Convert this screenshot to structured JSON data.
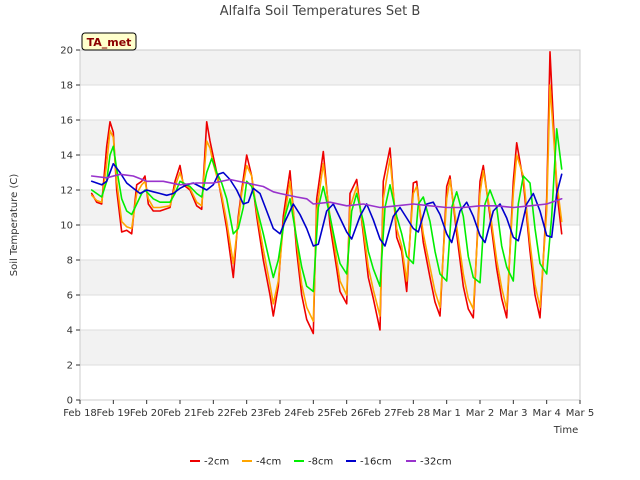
{
  "chart_data": {
    "type": "line",
    "title": "Alfalfa Soil Temperatures Set B",
    "xlabel": "Time",
    "ylabel": "Soil Temperature (C)",
    "ylim": [
      0,
      20
    ],
    "xlim": [
      0,
      15
    ],
    "yticks": [
      0,
      2,
      4,
      6,
      8,
      10,
      12,
      14,
      16,
      18,
      20
    ],
    "xticks": [
      {
        "x": 0,
        "label": "Feb 18"
      },
      {
        "x": 1,
        "label": "Feb 19"
      },
      {
        "x": 2,
        "label": "Feb 20"
      },
      {
        "x": 3,
        "label": "Feb 21"
      },
      {
        "x": 4,
        "label": "Feb 22"
      },
      {
        "x": 5,
        "label": "Feb 23"
      },
      {
        "x": 6,
        "label": "Feb 24"
      },
      {
        "x": 7,
        "label": "Feb 25"
      },
      {
        "x": 8,
        "label": "Feb 26"
      },
      {
        "x": 9,
        "label": "Feb 27"
      },
      {
        "x": 10,
        "label": "Feb 28"
      },
      {
        "x": 11,
        "label": "Mar 1"
      },
      {
        "x": 12,
        "label": "Mar 2"
      },
      {
        "x": 13,
        "label": "Mar 3"
      },
      {
        "x": 14,
        "label": "Mar 4"
      },
      {
        "x": 15,
        "label": "Mar 5"
      }
    ],
    "grid": "horizontal bands",
    "legend": "bottom",
    "site_label": "TA_met",
    "series": [
      {
        "name": "-2cm",
        "color": "#ee0000",
        "x": [
          0.35,
          0.5,
          0.65,
          0.8,
          0.9,
          1.0,
          1.1,
          1.25,
          1.4,
          1.55,
          1.7,
          1.85,
          1.95,
          2.05,
          2.2,
          2.4,
          2.7,
          2.85,
          3.0,
          3.1,
          3.3,
          3.5,
          3.65,
          3.8,
          3.9,
          4.0,
          4.1,
          4.25,
          4.4,
          4.6,
          4.75,
          4.85,
          5.0,
          5.15,
          5.3,
          5.5,
          5.7,
          5.8,
          5.95,
          6.1,
          6.3,
          6.5,
          6.65,
          6.8,
          7.0,
          7.1,
          7.3,
          7.5,
          7.7,
          7.8,
          8.0,
          8.1,
          8.3,
          8.5,
          8.65,
          8.8,
          9.0,
          9.1,
          9.3,
          9.5,
          9.65,
          9.8,
          10.0,
          10.1,
          10.3,
          10.5,
          10.65,
          10.8,
          11.0,
          11.1,
          11.3,
          11.5,
          11.65,
          11.8,
          12.0,
          12.1,
          12.3,
          12.5,
          12.65,
          12.8,
          13.0,
          13.1,
          13.3,
          13.5,
          13.65,
          13.8,
          14.0,
          14.1,
          14.3,
          14.45
        ],
        "y": [
          11.8,
          11.3,
          11.2,
          14.5,
          15.9,
          15.3,
          12.0,
          9.6,
          9.7,
          9.5,
          12.3,
          12.5,
          12.8,
          11.2,
          10.8,
          10.8,
          11.0,
          12.5,
          13.4,
          12.3,
          12.0,
          11.1,
          10.9,
          15.9,
          14.8,
          13.9,
          13.0,
          11.5,
          9.8,
          7.0,
          10.5,
          12.0,
          14.0,
          12.8,
          10.5,
          8.0,
          6.0,
          4.8,
          6.5,
          10.5,
          13.1,
          8.5,
          6.0,
          4.6,
          3.8,
          11.5,
          14.2,
          10.0,
          7.5,
          6.2,
          5.5,
          11.8,
          12.6,
          9.5,
          7.0,
          5.8,
          4.0,
          12.5,
          14.4,
          9.3,
          8.5,
          6.2,
          12.4,
          12.5,
          9.0,
          7.0,
          5.6,
          4.8,
          12.2,
          12.8,
          9.5,
          6.5,
          5.2,
          4.7,
          12.5,
          13.4,
          10.5,
          7.5,
          5.8,
          4.7,
          12.5,
          14.7,
          12.5,
          8.5,
          6.0,
          4.7,
          11.5,
          19.9,
          12.0,
          9.5
        ]
      },
      {
        "name": "-4cm",
        "color": "#ffa500",
        "x": [
          0.35,
          0.5,
          0.65,
          0.8,
          0.9,
          1.0,
          1.1,
          1.25,
          1.4,
          1.55,
          1.7,
          1.85,
          1.95,
          2.05,
          2.2,
          2.4,
          2.7,
          2.85,
          3.0,
          3.1,
          3.3,
          3.5,
          3.65,
          3.8,
          3.9,
          4.0,
          4.1,
          4.25,
          4.4,
          4.6,
          4.75,
          4.85,
          5.0,
          5.15,
          5.3,
          5.5,
          5.7,
          5.8,
          5.95,
          6.1,
          6.3,
          6.5,
          6.65,
          6.8,
          7.0,
          7.1,
          7.3,
          7.5,
          7.7,
          7.8,
          8.0,
          8.1,
          8.3,
          8.5,
          8.65,
          8.8,
          9.0,
          9.1,
          9.3,
          9.5,
          9.65,
          9.8,
          10.0,
          10.1,
          10.3,
          10.5,
          10.65,
          10.8,
          11.0,
          11.1,
          11.3,
          11.5,
          11.65,
          11.8,
          12.0,
          12.1,
          12.3,
          12.5,
          12.65,
          12.8,
          13.0,
          13.1,
          13.3,
          13.5,
          13.65,
          13.8,
          14.0,
          14.1,
          14.3,
          14.45
        ],
        "y": [
          11.7,
          11.4,
          11.3,
          13.5,
          15.4,
          15.0,
          12.5,
          10.2,
          9.9,
          9.8,
          11.8,
          12.3,
          12.5,
          11.5,
          11.0,
          11.0,
          11.1,
          12.2,
          13.0,
          12.4,
          12.1,
          11.3,
          11.1,
          14.8,
          14.4,
          13.5,
          12.8,
          11.7,
          10.2,
          7.8,
          10.2,
          11.8,
          13.4,
          12.8,
          10.8,
          8.6,
          6.6,
          5.5,
          6.8,
          10.0,
          12.5,
          9.0,
          6.6,
          5.3,
          4.5,
          10.8,
          13.5,
          10.5,
          8.0,
          6.8,
          6.0,
          11.0,
          12.2,
          9.8,
          7.6,
          6.3,
          4.8,
          11.5,
          13.8,
          9.8,
          8.8,
          6.8,
          11.8,
          12.2,
          9.5,
          7.6,
          6.2,
          5.3,
          11.5,
          12.6,
          9.9,
          7.2,
          5.8,
          5.2,
          11.8,
          13.1,
          10.8,
          8.0,
          6.4,
          5.2,
          11.8,
          14.0,
          12.8,
          9.0,
          6.6,
          5.3,
          10.8,
          18.0,
          12.5,
          10.2
        ]
      },
      {
        "name": "-8cm",
        "color": "#00ee00",
        "x": [
          0.35,
          0.5,
          0.65,
          0.8,
          0.9,
          1.0,
          1.1,
          1.25,
          1.4,
          1.55,
          1.7,
          1.85,
          1.95,
          2.05,
          2.2,
          2.4,
          2.7,
          2.85,
          3.0,
          3.1,
          3.3,
          3.5,
          3.65,
          3.8,
          3.95,
          4.1,
          4.25,
          4.4,
          4.6,
          4.75,
          4.9,
          5.0,
          5.15,
          5.3,
          5.5,
          5.7,
          5.8,
          5.95,
          6.15,
          6.3,
          6.5,
          6.65,
          6.8,
          7.0,
          7.15,
          7.3,
          7.5,
          7.7,
          7.8,
          8.0,
          8.15,
          8.3,
          8.5,
          8.65,
          8.8,
          9.0,
          9.15,
          9.3,
          9.5,
          9.65,
          9.8,
          10.0,
          10.15,
          10.3,
          10.5,
          10.65,
          10.8,
          11.0,
          11.15,
          11.3,
          11.5,
          11.65,
          11.8,
          12.0,
          12.15,
          12.3,
          12.5,
          12.65,
          12.8,
          13.0,
          13.15,
          13.3,
          13.5,
          13.65,
          13.8,
          14.0,
          14.15,
          14.3,
          14.45
        ],
        "y": [
          12.0,
          11.8,
          11.6,
          12.5,
          14.0,
          14.5,
          13.2,
          11.5,
          10.8,
          10.6,
          11.2,
          11.8,
          12.0,
          11.8,
          11.5,
          11.3,
          11.3,
          11.8,
          12.5,
          12.4,
          12.2,
          11.8,
          11.6,
          13.0,
          13.8,
          13.0,
          12.4,
          11.5,
          9.5,
          9.8,
          11.0,
          12.5,
          12.2,
          11.0,
          9.5,
          7.8,
          7.0,
          8.0,
          10.5,
          11.5,
          9.2,
          7.6,
          6.5,
          6.2,
          11.0,
          12.2,
          10.5,
          8.6,
          7.8,
          7.2,
          10.8,
          11.8,
          10.2,
          8.5,
          7.5,
          6.5,
          11.0,
          12.3,
          10.5,
          9.5,
          8.2,
          7.8,
          11.2,
          11.6,
          10.2,
          8.5,
          7.2,
          6.8,
          11.0,
          11.9,
          10.5,
          8.2,
          7.0,
          6.7,
          11.2,
          12.0,
          11.0,
          8.8,
          7.6,
          6.8,
          11.2,
          12.8,
          12.4,
          9.8,
          7.8,
          7.2,
          10.5,
          15.5,
          13.2
        ]
      },
      {
        "name": "-16cm",
        "color": "#0000cc",
        "x": [
          0.35,
          0.5,
          0.65,
          0.8,
          1.0,
          1.2,
          1.4,
          1.6,
          1.8,
          2.0,
          2.2,
          2.4,
          2.6,
          2.8,
          3.0,
          3.2,
          3.4,
          3.6,
          3.8,
          4.0,
          4.15,
          4.3,
          4.5,
          4.7,
          4.9,
          5.05,
          5.2,
          5.4,
          5.6,
          5.8,
          6.0,
          6.15,
          6.4,
          6.6,
          6.8,
          7.0,
          7.15,
          7.4,
          7.6,
          7.8,
          8.0,
          8.15,
          8.4,
          8.6,
          8.8,
          9.0,
          9.15,
          9.4,
          9.6,
          9.8,
          10.0,
          10.15,
          10.4,
          10.6,
          10.8,
          11.0,
          11.15,
          11.4,
          11.6,
          11.8,
          12.0,
          12.15,
          12.4,
          12.6,
          12.8,
          13.0,
          13.15,
          13.4,
          13.6,
          13.8,
          14.0,
          14.15,
          14.3,
          14.45
        ],
        "y": [
          12.5,
          12.4,
          12.3,
          12.5,
          13.5,
          13.0,
          12.4,
          12.1,
          11.8,
          12.0,
          11.9,
          11.8,
          11.7,
          11.8,
          12.1,
          12.3,
          12.4,
          12.2,
          12.0,
          12.3,
          12.9,
          13.0,
          12.6,
          12.0,
          11.2,
          11.3,
          12.1,
          11.8,
          10.8,
          9.8,
          9.5,
          10.2,
          11.2,
          10.6,
          9.8,
          8.8,
          8.9,
          10.8,
          11.2,
          10.4,
          9.6,
          9.2,
          10.5,
          11.2,
          10.3,
          9.2,
          8.8,
          10.5,
          11.0,
          10.4,
          9.8,
          9.6,
          11.2,
          11.3,
          10.6,
          9.5,
          9.0,
          10.8,
          11.3,
          10.5,
          9.4,
          9.0,
          10.8,
          11.2,
          10.4,
          9.3,
          9.1,
          11.2,
          11.8,
          10.8,
          9.4,
          9.3,
          11.8,
          12.9
        ]
      },
      {
        "name": "-32cm",
        "color": "#9933cc",
        "x": [
          0.35,
          0.8,
          1.2,
          1.6,
          2.0,
          2.5,
          3.0,
          3.5,
          4.0,
          4.5,
          5.0,
          5.5,
          5.8,
          6.0,
          6.5,
          6.8,
          7.0,
          7.5,
          8.0,
          8.5,
          9.0,
          9.5,
          10.0,
          10.5,
          11.0,
          11.5,
          12.0,
          12.5,
          13.0,
          13.5,
          14.0,
          14.45
        ],
        "y": [
          12.8,
          12.7,
          12.9,
          12.8,
          12.5,
          12.5,
          12.3,
          12.4,
          12.4,
          12.6,
          12.4,
          12.2,
          11.9,
          11.8,
          11.6,
          11.5,
          11.2,
          11.3,
          11.1,
          11.2,
          11.0,
          11.1,
          11.2,
          11.1,
          11.0,
          11.0,
          11.1,
          11.1,
          11.0,
          11.1,
          11.2,
          11.5
        ]
      }
    ]
  }
}
